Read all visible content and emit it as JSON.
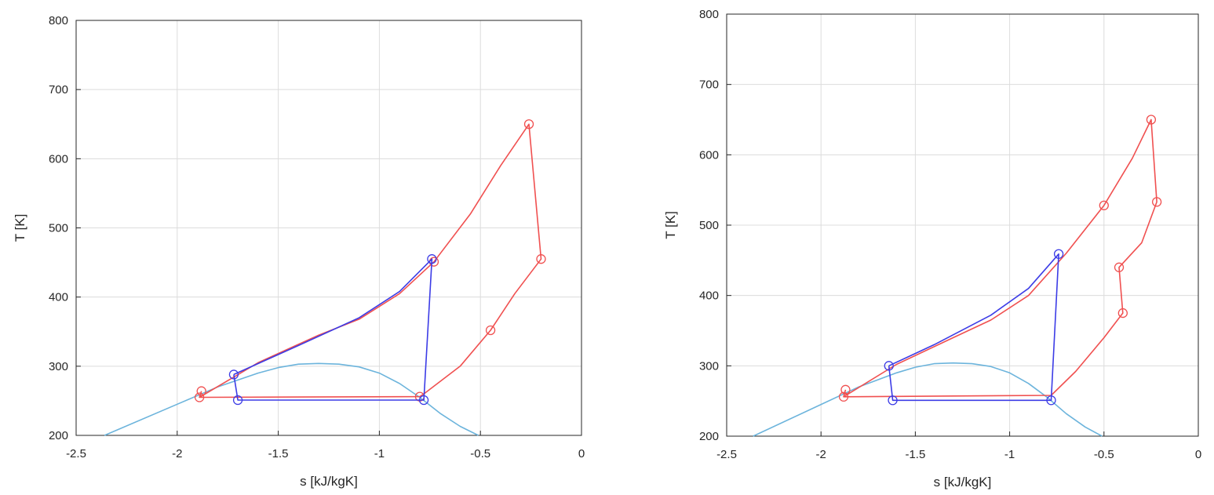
{
  "colors": {
    "cycle_red": "#f05050",
    "cycle_blue": "#3c3ce6",
    "dome": "#6cb4dc",
    "grid": "#dcdcdc",
    "axes": "#262626"
  },
  "chart_data": [
    {
      "type": "line",
      "xlabel": "s [kJ/kgK]",
      "ylabel": "T [K]",
      "xlim": [
        -2.5,
        0
      ],
      "ylim": [
        200,
        800
      ],
      "xticks": [
        "-2.5",
        "-2",
        "-1.5",
        "-1",
        "-0.5",
        "0"
      ],
      "yticks": [
        "200",
        "300",
        "400",
        "500",
        "600",
        "700",
        "800"
      ],
      "grid": true,
      "series": [
        {
          "color_key": "dome",
          "markers": false,
          "x": [
            -2.36,
            -2.0,
            -1.8,
            -1.6,
            -1.5,
            -1.4,
            -1.3,
            -1.2,
            -1.1,
            -1.0,
            -0.9,
            -0.8,
            -0.7,
            -0.6,
            -0.51
          ],
          "y": [
            200,
            245,
            270,
            290,
            298,
            303,
            304,
            303,
            299,
            290,
            275,
            255,
            232,
            213,
            200
          ]
        },
        {
          "color_key": "cycle_red",
          "markers": false,
          "x": [
            -1.89,
            -1.6,
            -1.3,
            -1.1,
            -0.9,
            -0.73,
            -0.55,
            -0.4,
            -0.26,
            -0.2,
            -0.33,
            -0.45,
            -0.6,
            -0.78,
            -0.8,
            -1.89,
            -1.88
          ],
          "y": [
            255,
            305,
            345,
            368,
            405,
            451,
            520,
            590,
            650,
            455,
            405,
            352,
            300,
            260,
            256,
            255,
            264
          ]
        },
        {
          "color_key": "cycle_red",
          "markers": true,
          "x": [
            -1.89,
            -1.88,
            -0.73,
            -0.26,
            -0.2,
            -0.45,
            -0.8
          ],
          "y": [
            255,
            264,
            451,
            650,
            455,
            352,
            256
          ]
        },
        {
          "color_key": "cycle_blue",
          "markers": false,
          "x": [
            -1.72,
            -1.4,
            -1.1,
            -0.9,
            -0.74,
            -0.78,
            -1.7,
            -1.72
          ],
          "y": [
            288,
            330,
            370,
            408,
            455,
            251,
            251,
            288
          ]
        },
        {
          "color_key": "cycle_blue",
          "markers": true,
          "x": [
            -1.72,
            -0.74,
            -0.78,
            -1.7
          ],
          "y": [
            288,
            455,
            251,
            251
          ]
        }
      ]
    },
    {
      "type": "line",
      "xlabel": "s [kJ/kgK]",
      "ylabel": "T [K]",
      "xlim": [
        -2.5,
        0
      ],
      "ylim": [
        200,
        800
      ],
      "xticks": [
        "-2.5",
        "-2",
        "-1.5",
        "-1",
        "-0.5",
        "0"
      ],
      "yticks": [
        "200",
        "300",
        "400",
        "500",
        "600",
        "700",
        "800"
      ],
      "grid": true,
      "series": [
        {
          "color_key": "dome",
          "markers": false,
          "x": [
            -2.36,
            -2.0,
            -1.8,
            -1.6,
            -1.5,
            -1.4,
            -1.3,
            -1.2,
            -1.1,
            -1.0,
            -0.9,
            -0.8,
            -0.7,
            -0.6,
            -0.51
          ],
          "y": [
            200,
            245,
            270,
            290,
            298,
            303,
            304,
            303,
            299,
            290,
            275,
            255,
            232,
            213,
            200
          ]
        },
        {
          "color_key": "cycle_red",
          "markers": false,
          "x": [
            -1.88,
            -1.6,
            -1.3,
            -1.1,
            -0.9,
            -0.7,
            -0.5,
            -0.35,
            -0.25,
            -0.22,
            -0.3,
            -0.42,
            -0.4,
            -0.5,
            -0.65,
            -0.78,
            -1.88,
            -1.87
          ],
          "y": [
            256,
            302,
            340,
            365,
            400,
            460,
            528,
            595,
            650,
            533,
            475,
            440,
            375,
            340,
            292,
            258,
            256,
            266
          ]
        },
        {
          "color_key": "cycle_red",
          "markers": true,
          "x": [
            -1.88,
            -1.87,
            -0.5,
            -0.25,
            -0.22,
            -0.42,
            -0.4
          ],
          "y": [
            256,
            266,
            528,
            650,
            533,
            440,
            375
          ]
        },
        {
          "color_key": "cycle_blue",
          "markers": false,
          "x": [
            -1.64,
            -1.4,
            -1.1,
            -0.9,
            -0.74,
            -0.78,
            -1.62,
            -1.64
          ],
          "y": [
            300,
            330,
            372,
            410,
            459,
            251,
            251,
            300
          ]
        },
        {
          "color_key": "cycle_blue",
          "markers": true,
          "x": [
            -1.64,
            -0.74,
            -0.78,
            -1.62
          ],
          "y": [
            300,
            459,
            251,
            251
          ]
        }
      ]
    }
  ]
}
